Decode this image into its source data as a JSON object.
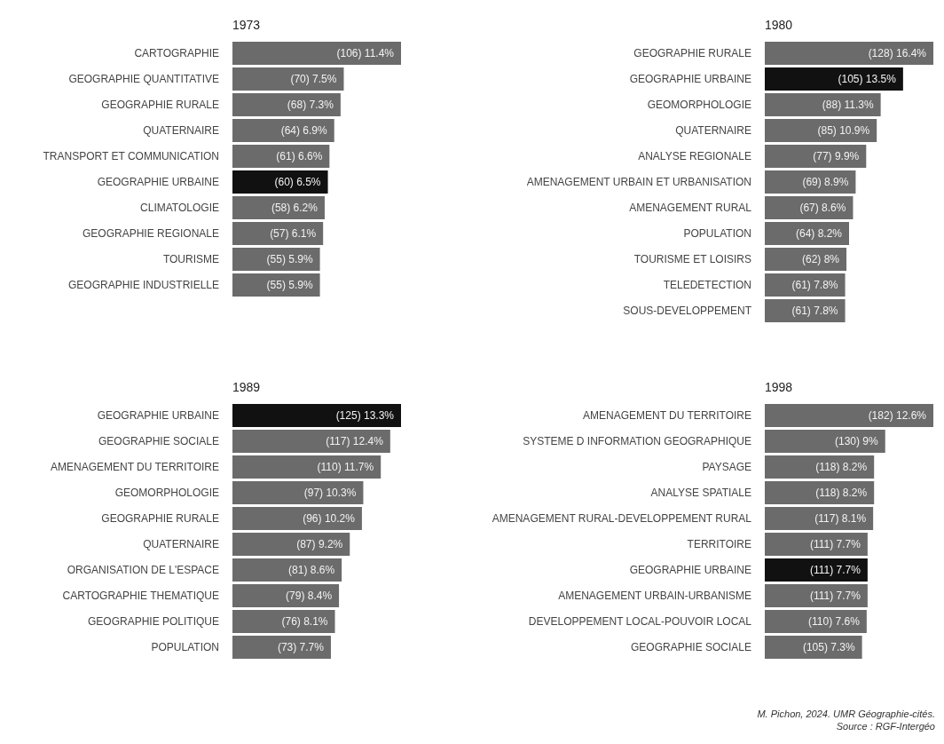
{
  "chart_data": [
    {
      "type": "bar",
      "orientation": "horizontal",
      "title": "1973",
      "categories": [
        "CARTOGRAPHIE",
        "GEOGRAPHIE QUANTITATIVE",
        "GEOGRAPHIE RURALE",
        "QUATERNAIRE",
        "TRANSPORT ET COMMUNICATION",
        "GEOGRAPHIE URBAINE",
        "CLIMATOLOGIE",
        "GEOGRAPHIE REGIONALE",
        "TOURISME",
        "GEOGRAPHIE INDUSTRIELLE"
      ],
      "values": [
        106,
        70,
        68,
        64,
        61,
        60,
        58,
        57,
        55,
        55
      ],
      "value_labels": [
        "(106) 11.4%",
        "(70) 7.5%",
        "(68) 7.3%",
        "(64) 6.9%",
        "(61) 6.6%",
        "(60) 6.5%",
        "(58) 6.2%",
        "(57) 6.1%",
        "(55) 5.9%",
        "(55) 5.9%"
      ],
      "colors": [
        "#6b6b6b",
        "#6b6b6b",
        "#6b6b6b",
        "#6b6b6b",
        "#6b6b6b",
        "#111111",
        "#6b6b6b",
        "#6b6b6b",
        "#6b6b6b",
        "#6b6b6b"
      ]
    },
    {
      "type": "bar",
      "orientation": "horizontal",
      "title": "1980",
      "categories": [
        "GEOGRAPHIE RURALE",
        "GEOGRAPHIE URBAINE",
        "GEOMORPHOLOGIE",
        "QUATERNAIRE",
        "ANALYSE REGIONALE",
        "AMENAGEMENT URBAIN ET URBANISATION",
        "AMENAGEMENT RURAL",
        "POPULATION",
        "TOURISME ET LOISIRS",
        "TELEDETECTION",
        "SOUS-DEVELOPPEMENT"
      ],
      "values": [
        128,
        105,
        88,
        85,
        77,
        69,
        67,
        64,
        62,
        61,
        61
      ],
      "value_labels": [
        "(128) 16.4%",
        "(105) 13.5%",
        "(88) 11.3%",
        "(85) 10.9%",
        "(77) 9.9%",
        "(69) 8.9%",
        "(67) 8.6%",
        "(64) 8.2%",
        "(62) 8%",
        "(61) 7.8%",
        "(61) 7.8%"
      ],
      "colors": [
        "#6b6b6b",
        "#111111",
        "#6b6b6b",
        "#6b6b6b",
        "#6b6b6b",
        "#6b6b6b",
        "#6b6b6b",
        "#6b6b6b",
        "#6b6b6b",
        "#6b6b6b",
        "#6b6b6b"
      ]
    },
    {
      "type": "bar",
      "orientation": "horizontal",
      "title": "1989",
      "categories": [
        "GEOGRAPHIE URBAINE",
        "GEOGRAPHIE SOCIALE",
        "AMENAGEMENT DU TERRITOIRE",
        "GEOMORPHOLOGIE",
        "GEOGRAPHIE RURALE",
        "QUATERNAIRE",
        "ORGANISATION DE L'ESPACE",
        "CARTOGRAPHIE THEMATIQUE",
        "GEOGRAPHIE POLITIQUE",
        "POPULATION"
      ],
      "values": [
        125,
        117,
        110,
        97,
        96,
        87,
        81,
        79,
        76,
        73
      ],
      "value_labels": [
        "(125) 13.3%",
        "(117) 12.4%",
        "(110) 11.7%",
        "(97) 10.3%",
        "(96) 10.2%",
        "(87) 9.2%",
        "(81) 8.6%",
        "(79) 8.4%",
        "(76) 8.1%",
        "(73) 7.7%"
      ],
      "colors": [
        "#111111",
        "#6b6b6b",
        "#6b6b6b",
        "#6b6b6b",
        "#6b6b6b",
        "#6b6b6b",
        "#6b6b6b",
        "#6b6b6b",
        "#6b6b6b",
        "#6b6b6b"
      ]
    },
    {
      "type": "bar",
      "orientation": "horizontal",
      "title": "1998",
      "categories": [
        "AMENAGEMENT DU TERRITOIRE",
        "SYSTEME D INFORMATION GEOGRAPHIQUE",
        "PAYSAGE",
        "ANALYSE SPATIALE",
        "AMENAGEMENT RURAL-DEVELOPPEMENT RURAL",
        "TERRITOIRE",
        "GEOGRAPHIE URBAINE",
        "AMENAGEMENT URBAIN-URBANISME",
        "DEVELOPPEMENT LOCAL-POUVOIR LOCAL",
        "GEOGRAPHIE SOCIALE"
      ],
      "values": [
        182,
        130,
        118,
        118,
        117,
        111,
        111,
        111,
        110,
        105
      ],
      "value_labels": [
        "(182) 12.6%",
        "(130) 9%",
        "(118) 8.2%",
        "(118) 8.2%",
        "(117) 8.1%",
        "(111) 7.7%",
        "(111) 7.7%",
        "(111) 7.7%",
        "(110) 7.6%",
        "(105) 7.3%"
      ],
      "colors": [
        "#6b6b6b",
        "#6b6b6b",
        "#6b6b6b",
        "#6b6b6b",
        "#6b6b6b",
        "#6b6b6b",
        "#111111",
        "#6b6b6b",
        "#6b6b6b",
        "#6b6b6b"
      ],
      "annotations": [
        "M. Pichon, 2024. UMR Géographie-cités.",
        "Source : RGF-Intergéo"
      ]
    }
  ]
}
